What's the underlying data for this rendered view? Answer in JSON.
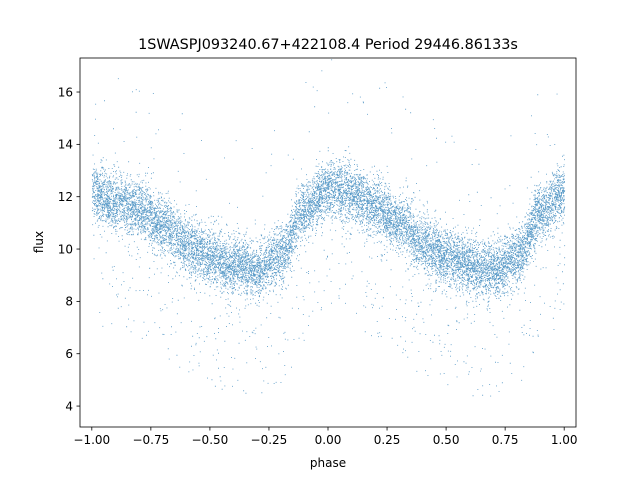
{
  "chart_data": {
    "type": "scatter",
    "title": "1SWASPJ093240.67+422108.4 Period 29446.86133s",
    "xlabel": "phase",
    "ylabel": "flux",
    "xlim": [
      -1.05,
      1.05
    ],
    "ylim": [
      3.2,
      17.3
    ],
    "x_ticks": [
      -1.0,
      -0.75,
      -0.5,
      -0.25,
      0.0,
      0.25,
      0.5,
      0.75,
      1.0
    ],
    "x_tick_labels": [
      "−1.00",
      "−0.75",
      "−0.50",
      "−0.25",
      "0.00",
      "0.25",
      "0.50",
      "0.75",
      "1.00"
    ],
    "y_ticks": [
      4,
      6,
      8,
      10,
      12,
      14,
      16
    ],
    "y_tick_labels": [
      "4",
      "6",
      "8",
      "10",
      "12",
      "14",
      "16"
    ],
    "grid": false,
    "legend": "none",
    "marker_color": "#1f77b4",
    "series": [
      {
        "model": "phase-folded periodic light curve, two cycles over phase -1..1",
        "x": [
          -1.0,
          -0.9,
          -0.8,
          -0.7,
          -0.6,
          -0.5,
          -0.4,
          -0.3,
          -0.2,
          -0.1,
          0.0,
          0.1,
          0.2,
          0.3,
          0.4,
          0.5,
          0.6,
          0.7,
          0.8,
          0.9,
          1.0
        ],
        "y": [
          12.1,
          11.8,
          11.5,
          10.9,
          10.2,
          9.7,
          9.4,
          9.2,
          9.8,
          11.5,
          12.3,
          12.1,
          11.6,
          11.0,
          10.2,
          9.7,
          9.4,
          9.2,
          9.7,
          11.4,
          12.2
        ],
        "scatter_spread": 0.55,
        "point_count": 14000
      }
    ]
  }
}
